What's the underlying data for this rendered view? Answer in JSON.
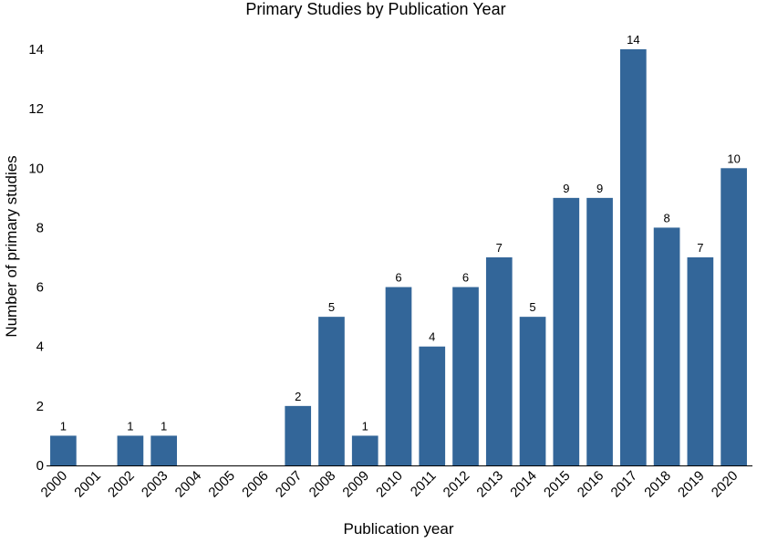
{
  "chart_data": {
    "type": "bar",
    "title": "Primary Studies by Publication Year",
    "xlabel": "Publication year",
    "ylabel": "Number of primary studies",
    "categories": [
      "2000",
      "2001",
      "2002",
      "2003",
      "2004",
      "2005",
      "2006",
      "2007",
      "2008",
      "2009",
      "2010",
      "2011",
      "2012",
      "2013",
      "2014",
      "2015",
      "2016",
      "2017",
      "2018",
      "2019",
      "2020"
    ],
    "values": [
      1,
      0,
      1,
      1,
      0,
      0,
      0,
      2,
      5,
      1,
      6,
      4,
      6,
      7,
      5,
      9,
      9,
      14,
      8,
      7,
      10
    ],
    "data_labels": [
      "1",
      "",
      "1",
      "1",
      "",
      "",
      "",
      "2",
      "5",
      "1",
      "6",
      "4",
      "6",
      "7",
      "5",
      "9",
      "9",
      "14",
      "8",
      "7",
      "10"
    ],
    "ylim": [
      0,
      14
    ],
    "yticks": [
      0,
      2,
      4,
      6,
      8,
      10,
      12,
      14
    ],
    "bar_color": "#336699",
    "grid": false,
    "legend": "none"
  }
}
